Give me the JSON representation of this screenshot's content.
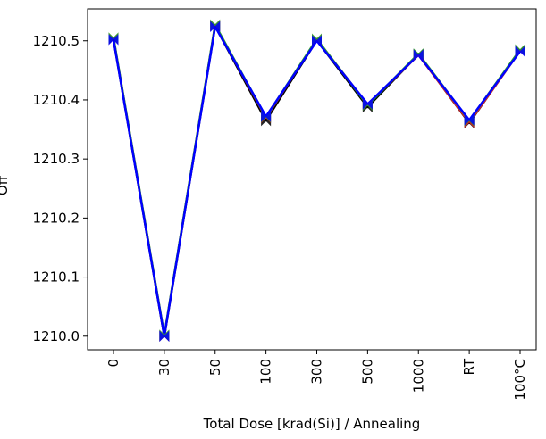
{
  "chart_data": {
    "type": "line",
    "xlabel": "Total Dose [krad(Si)] / Annealing",
    "ylabel": "Off",
    "categories": [
      "0",
      "30",
      "50",
      "100",
      "300",
      "500",
      "1000",
      "RT",
      "100°C"
    ],
    "series": [
      {
        "color": "#000000",
        "values": [
          1210.503,
          1210.0,
          1210.525,
          1210.365,
          1210.501,
          1210.388,
          1210.477,
          1210.361,
          1210.484
        ]
      },
      {
        "color": "#d62728",
        "values": [
          1210.504,
          1210.001,
          1210.526,
          1210.37,
          1210.502,
          1210.392,
          1210.476,
          1210.362,
          1210.483
        ]
      },
      {
        "color": "#2ca02c",
        "values": [
          1210.505,
          1210.002,
          1210.527,
          1210.371,
          1210.503,
          1210.391,
          1210.478,
          1210.365,
          1210.485
        ]
      },
      {
        "color": "#0000ff",
        "values": [
          1210.502,
          1210.0,
          1210.524,
          1210.372,
          1210.5,
          1210.393,
          1210.476,
          1210.366,
          1210.482
        ]
      }
    ],
    "ylim": [
      1209.977,
      1210.554
    ],
    "yticks": [
      {
        "value": 1210.0,
        "label": "1210.0"
      },
      1210.1,
      1210.2,
      1210.3,
      1210.4,
      1210.5
    ]
  }
}
